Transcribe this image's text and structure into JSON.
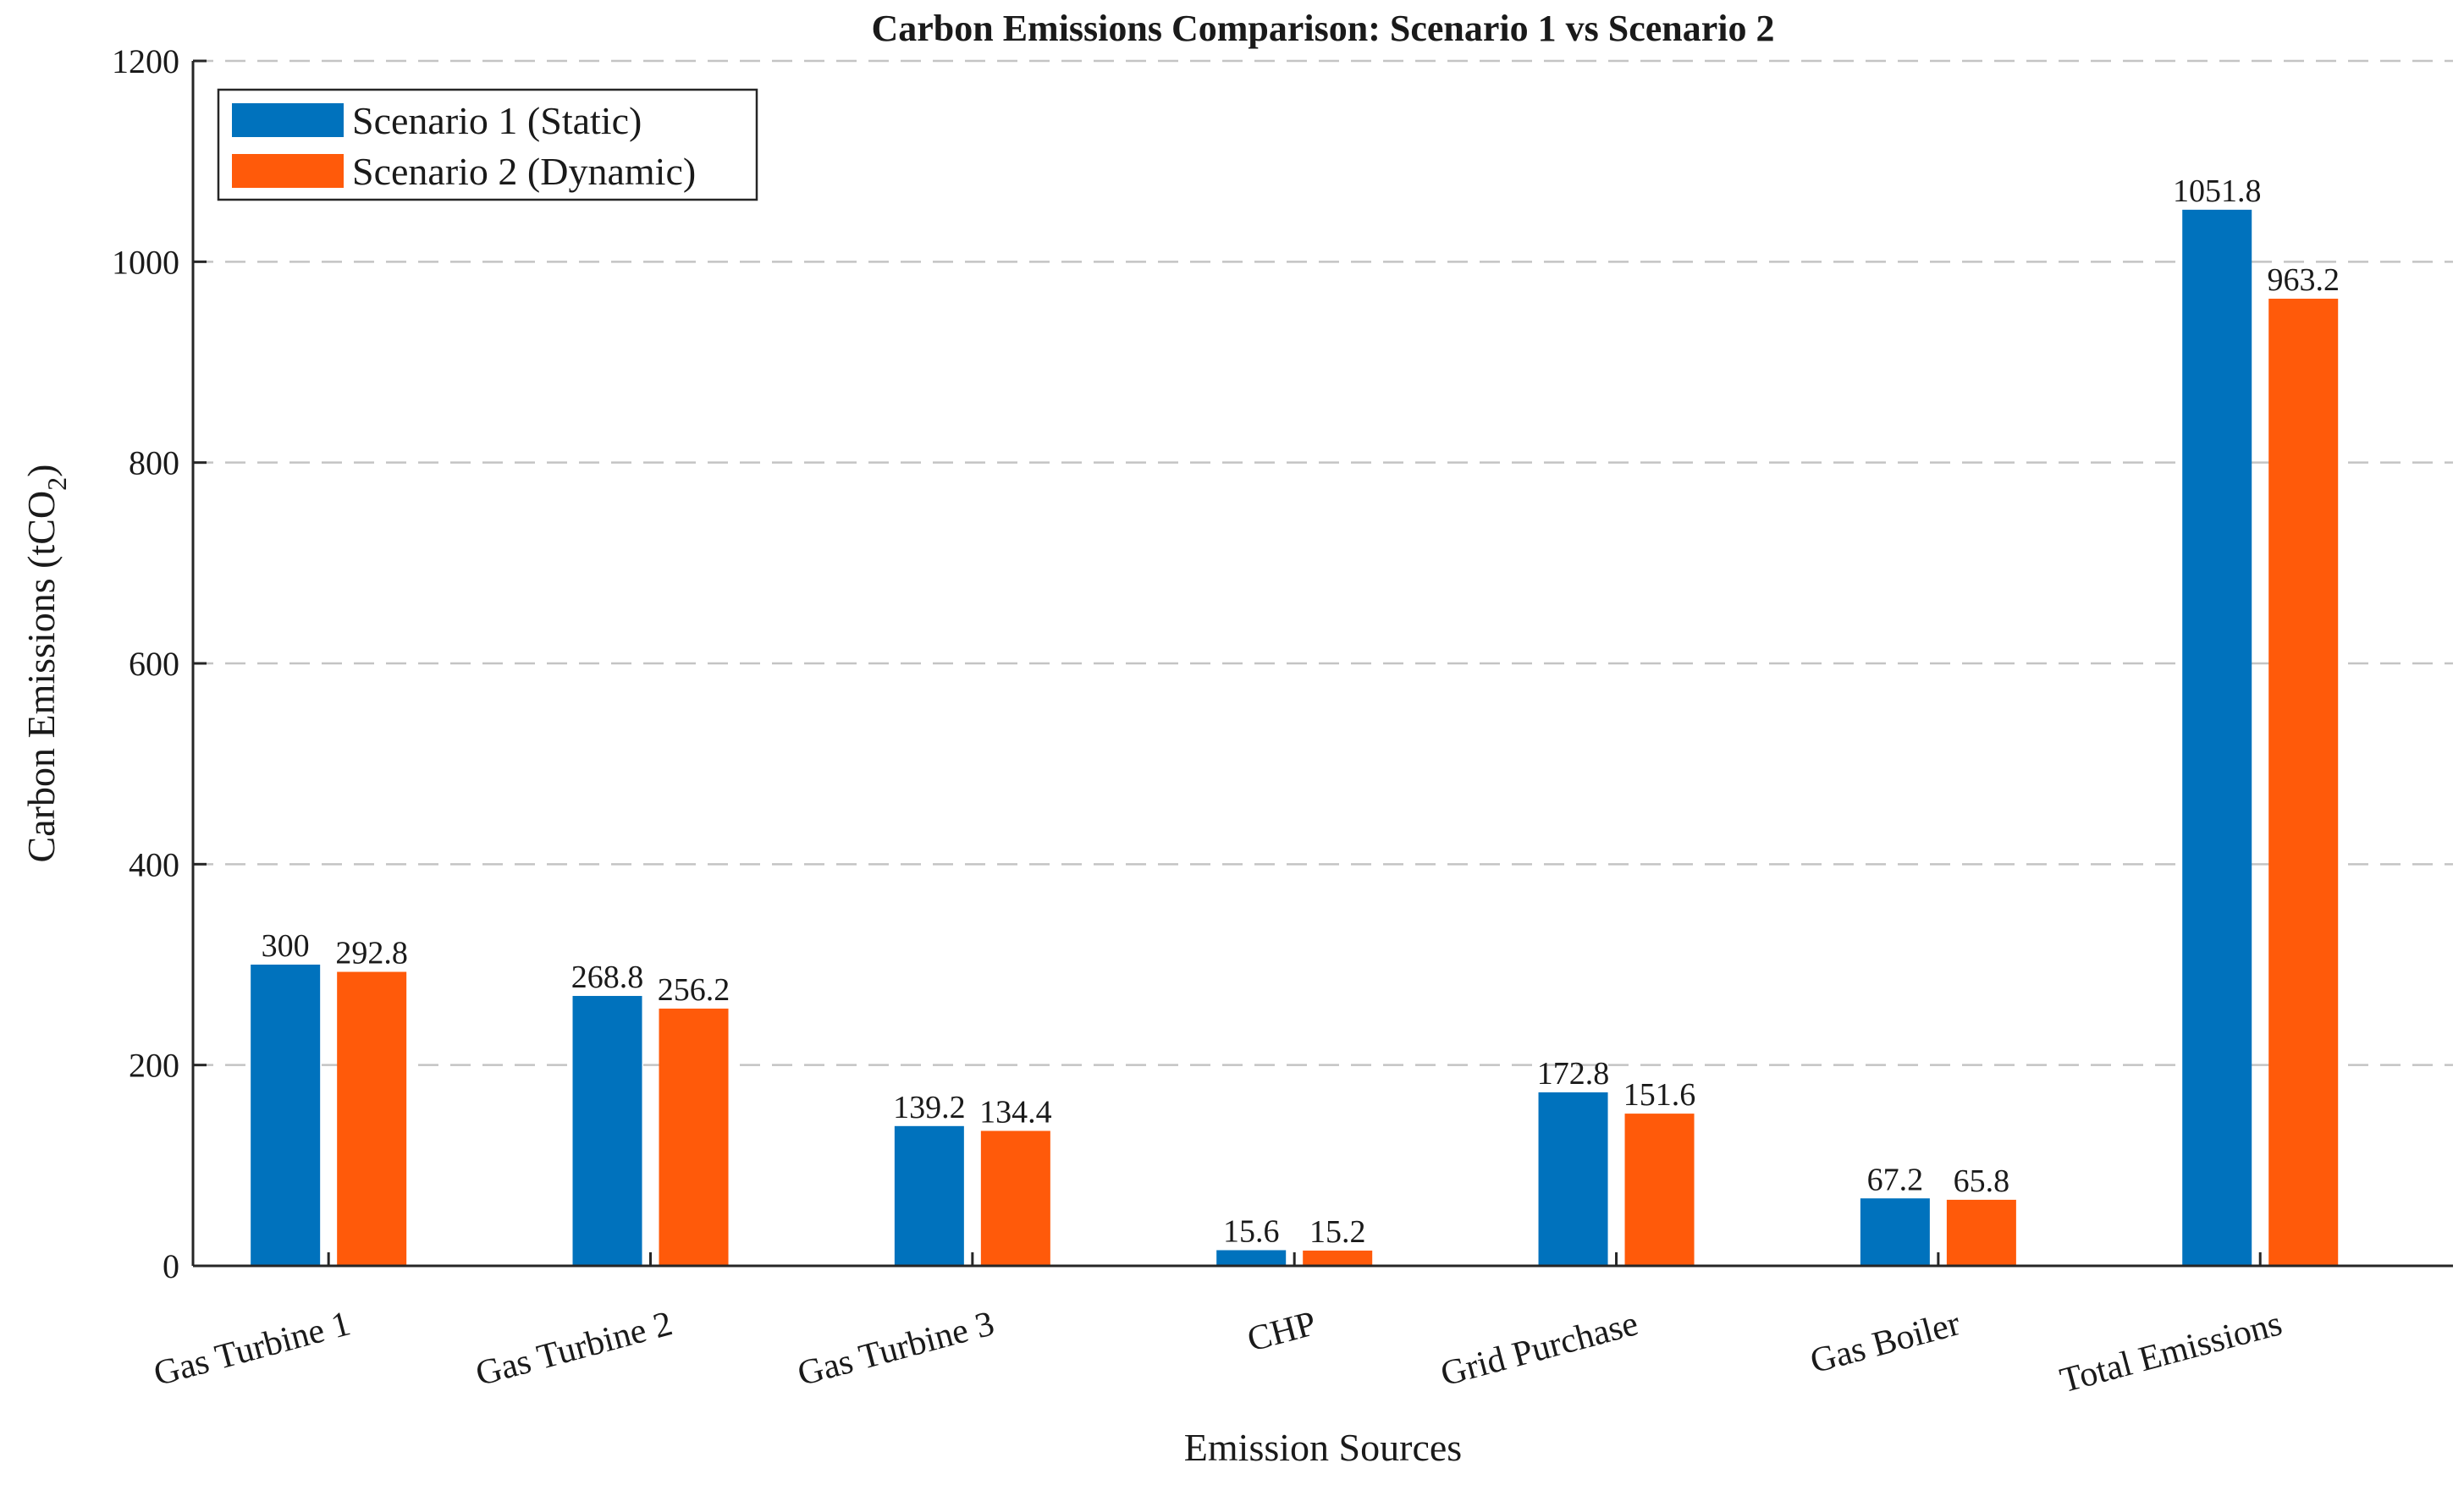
{
  "chart_data": {
    "type": "bar",
    "title": "Carbon Emissions Comparison: Scenario 1 vs Scenario 2",
    "xlabel": "Emission Sources",
    "ylabel": "Carbon Emissions (tCO",
    "ylabel_subscript": "2",
    "ylabel_suffix": ")",
    "categories": [
      "Gas Turbine 1",
      "Gas Turbine 2",
      "Gas Turbine 3",
      "CHP",
      "Grid Purchase",
      "Gas Boiler",
      "Total Emissions"
    ],
    "series": [
      {
        "name": "Scenario 1 (Static)",
        "color": "#0072BD",
        "values": [
          300,
          268.8,
          139.2,
          15.6,
          172.8,
          67.2,
          1051.8
        ],
        "labels": [
          "300",
          "268.8",
          "139.2",
          "15.6",
          "172.8",
          "67.2",
          "1051.8"
        ]
      },
      {
        "name": "Scenario 2 (Dynamic)",
        "color": "#FF5A0A",
        "values": [
          292.8,
          256.2,
          134.4,
          15.2,
          151.6,
          65.8,
          963.2
        ],
        "labels": [
          "292.8",
          "256.2",
          "134.4",
          "15.2",
          "151.6",
          "65.8",
          "963.2"
        ]
      }
    ],
    "ylim": [
      0,
      1200
    ],
    "yticks": [
      "0",
      "200",
      "400",
      "600",
      "800",
      "1000",
      "1200"
    ],
    "grid": "y-dashed",
    "legend_position": "top-left"
  }
}
